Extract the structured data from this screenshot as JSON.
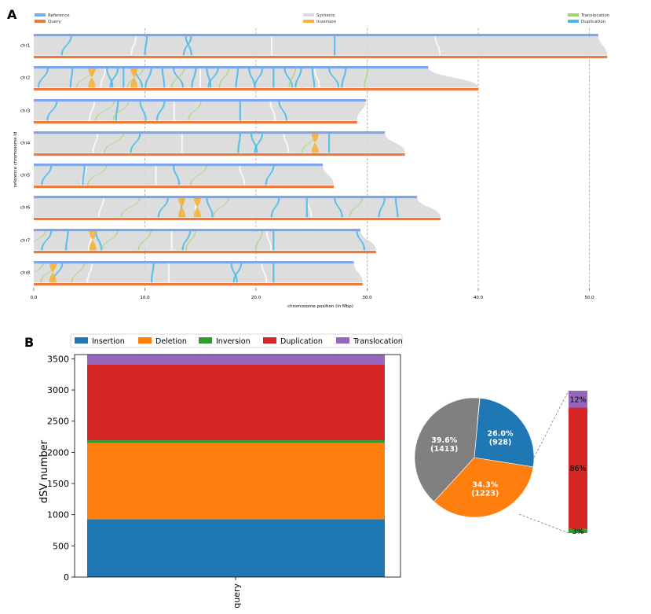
{
  "panels": {
    "a_label": "A",
    "b_label": "B"
  },
  "chart_data": [
    {
      "type": "synteny",
      "panel": "A",
      "xlabel": "chromosome position (in Mbp)",
      "ylabel": "reference chromosome id",
      "xlim": [
        0,
        52
      ],
      "x_ticks": [
        0,
        10,
        20,
        30,
        40,
        50
      ],
      "x_tick_labels": [
        "0.0",
        "10.0",
        "20.0",
        "30.0",
        "40.0",
        "50.0"
      ],
      "legend": [
        {
          "label": "Reference",
          "color": "#7fa6ea"
        },
        {
          "label": "Query",
          "color": "#ec7a3d"
        },
        {
          "label": "Syntenic",
          "color": "#d9d9d9"
        },
        {
          "label": "Inversion",
          "color": "#f6b23c"
        },
        {
          "label": "Translocation",
          "color": "#9ed66a"
        },
        {
          "label": "Duplication",
          "color": "#41bbee"
        }
      ],
      "chromosomes": [
        {
          "name": "chr1",
          "ref_length": 50.8,
          "query_length": 51.6,
          "duplications": [
            3.3,
            10.1,
            13.6,
            14.1,
            27.0
          ],
          "translocations": [],
          "inversions": []
        },
        {
          "name": "chr2",
          "ref_length": 35.5,
          "query_length": 40.0,
          "duplications": [
            1.2,
            3.4,
            6.5,
            7.5,
            8.0,
            9.0,
            10.5,
            11.5,
            12.5,
            14.5,
            15.5,
            16.5,
            18.3,
            19.3,
            20.5,
            21.5,
            22.5,
            24.0,
            25.0,
            26.5,
            28.0
          ],
          "translocations": [
            5.5,
            9.8,
            13.5,
            17.5,
            23.5,
            30.0
          ],
          "inversions": [
            4.9,
            8.7
          ]
        },
        {
          "name": "chr3",
          "ref_length": 29.9,
          "query_length": 29.1,
          "duplications": [
            2.0,
            7.5,
            9.5,
            11.7,
            18.5,
            22.0
          ],
          "translocations": [
            7.2,
            8.5,
            15.0
          ],
          "inversions": []
        },
        {
          "name": "chr4",
          "ref_length": 31.6,
          "query_length": 33.4,
          "duplications": [
            9.5,
            18.5,
            19.5,
            20.5,
            26.5
          ],
          "translocations": [
            8.0,
            25.5
          ],
          "inversions": [
            25.0
          ]
        },
        {
          "name": "chr5",
          "ref_length": 26.0,
          "query_length": 27.0,
          "duplications": [
            1.5,
            4.5,
            12.5,
            21.5
          ],
          "translocations": [
            6.5,
            15.5
          ],
          "inversions": []
        },
        {
          "name": "chr6",
          "ref_length": 34.5,
          "query_length": 36.6,
          "duplications": [
            12.0,
            13.3,
            15.5,
            22.0,
            24.5,
            27.0,
            31.5,
            32.5
          ],
          "translocations": [
            9.5,
            17.5,
            29.5
          ],
          "inversions": [
            13.0,
            14.4
          ]
        },
        {
          "name": "chr7",
          "ref_length": 29.4,
          "query_length": 30.8,
          "duplications": [
            1.5,
            3.0,
            5.5,
            14.0,
            21.5,
            29.0
          ],
          "translocations": [
            1.0,
            7.5,
            10.5,
            14.5,
            20.5
          ],
          "inversions": [
            5.0
          ]
        },
        {
          "name": "chr8",
          "ref_length": 28.8,
          "query_length": 29.6,
          "duplications": [
            2.5,
            10.7,
            17.7,
            18.6,
            21.5
          ],
          "translocations": [
            0.8,
            2.0,
            4.5
          ],
          "inversions": [
            1.4
          ]
        }
      ]
    },
    {
      "type": "bar",
      "panel": "B",
      "stacked": true,
      "categories": [
        "query"
      ],
      "ylabel": "dSV number",
      "ylim": [
        0,
        3600
      ],
      "y_ticks": [
        0,
        500,
        1000,
        1500,
        2000,
        2500,
        3000,
        3500
      ],
      "series": [
        {
          "name": "Insertion",
          "values": [
            928
          ],
          "color": "#1f77b4"
        },
        {
          "name": "Deletion",
          "values": [
            1223
          ],
          "color": "#ff7f0e"
        },
        {
          "name": "Inversion",
          "values": [
            42
          ],
          "color": "#2ca02c"
        },
        {
          "name": "Duplication",
          "values": [
            1216
          ],
          "color": "#d62728"
        },
        {
          "name": "Translocation",
          "values": [
            155
          ],
          "color": "#9467bd"
        }
      ]
    },
    {
      "type": "pie",
      "panel": "B",
      "slices": [
        {
          "label": "26.0%\n(928)",
          "percent": 26.0,
          "value": 928,
          "color": "#1f77b4"
        },
        {
          "label": "34.3%\n(1223)",
          "percent": 34.3,
          "value": 1223,
          "color": "#ff7f0e"
        },
        {
          "label": "39.6%\n(1413)",
          "percent": 39.6,
          "value": 1413,
          "color": "#808080"
        }
      ]
    },
    {
      "type": "bar",
      "panel": "B",
      "stacked": true,
      "description_of": "breakdown of grey pie slice",
      "series": [
        {
          "name": "Inversion",
          "percent": 3,
          "label": "3%",
          "color": "#2ca02c"
        },
        {
          "name": "Duplication",
          "percent": 86,
          "label": "86%",
          "color": "#d62728"
        },
        {
          "name": "Translocation",
          "percent": 12,
          "label": "12%",
          "color": "#9467bd"
        }
      ]
    }
  ]
}
